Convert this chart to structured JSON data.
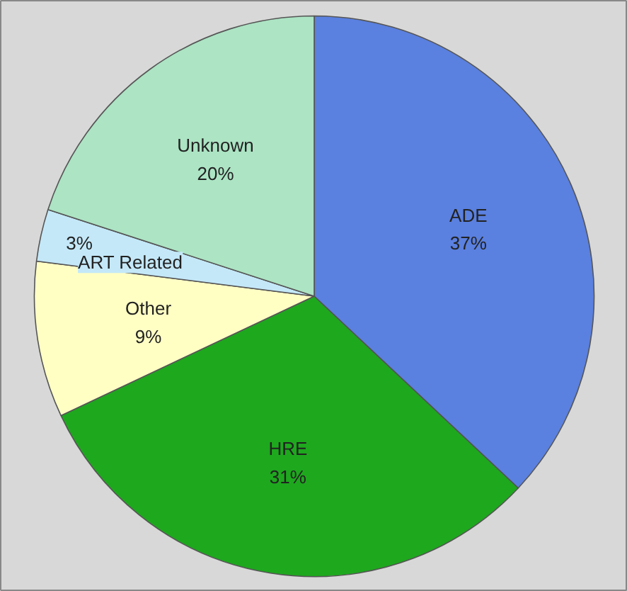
{
  "chart_data": {
    "type": "pie",
    "categories": [
      "ADE",
      "HRE",
      "Other",
      "ART Related",
      "Unknown"
    ],
    "values": [
      37,
      31,
      9,
      3,
      20
    ],
    "value_labels": [
      "37%",
      "31%",
      "9%",
      "3%",
      "20%"
    ],
    "colors": [
      "#5a80e0",
      "#1ea81e",
      "#ffffc4",
      "#c4e8f8",
      "#ace4c4"
    ]
  }
}
